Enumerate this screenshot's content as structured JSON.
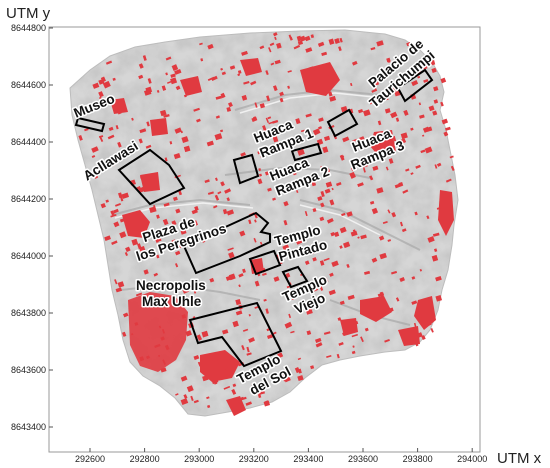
{
  "axes": {
    "x_title": "UTM x",
    "y_title": "UTM y",
    "x_ticks": [
      "292600",
      "292800",
      "293000",
      "293200",
      "293400",
      "293600",
      "293800",
      "294000"
    ],
    "y_ticks": [
      "8644800",
      "8644600",
      "8644400",
      "8644200",
      "8644000",
      "8643800",
      "8643600",
      "8643400"
    ]
  },
  "sites": [
    {
      "id": "museo",
      "lines": [
        "Museo"
      ]
    },
    {
      "id": "acllawasi",
      "lines": [
        "Acllawasi"
      ]
    },
    {
      "id": "huaca-rampa-1",
      "lines": [
        "Huaca",
        "Rampa 1"
      ]
    },
    {
      "id": "huaca-rampa-2",
      "lines": [
        "Huaca",
        "Rampa 2"
      ]
    },
    {
      "id": "huaca-rampa-3",
      "lines": [
        "Huaca",
        "Rampa 3"
      ]
    },
    {
      "id": "palacio-de-taurichumpi",
      "lines": [
        "Palacio de",
        "Taurichumpi"
      ]
    },
    {
      "id": "plaza-de-los-peregrinos",
      "lines": [
        "Plaza de",
        "los Peregrinos"
      ]
    },
    {
      "id": "templo-pintado",
      "lines": [
        "Templo",
        "Pintado"
      ]
    },
    {
      "id": "templo-viejo",
      "lines": [
        "Templo",
        "Viejo"
      ]
    },
    {
      "id": "necropolis-max-uhle",
      "lines": [
        "Necropolis",
        "Max Uhle"
      ]
    },
    {
      "id": "templo-del-sol",
      "lines": [
        "Templo",
        "del Sol"
      ]
    }
  ],
  "colors": {
    "frame": "#9a9a9a",
    "terrain": "#d6d6d6",
    "terrain_dark": "#b9b9b9",
    "highlight": "#e03a40",
    "site_outline": "#000000"
  }
}
